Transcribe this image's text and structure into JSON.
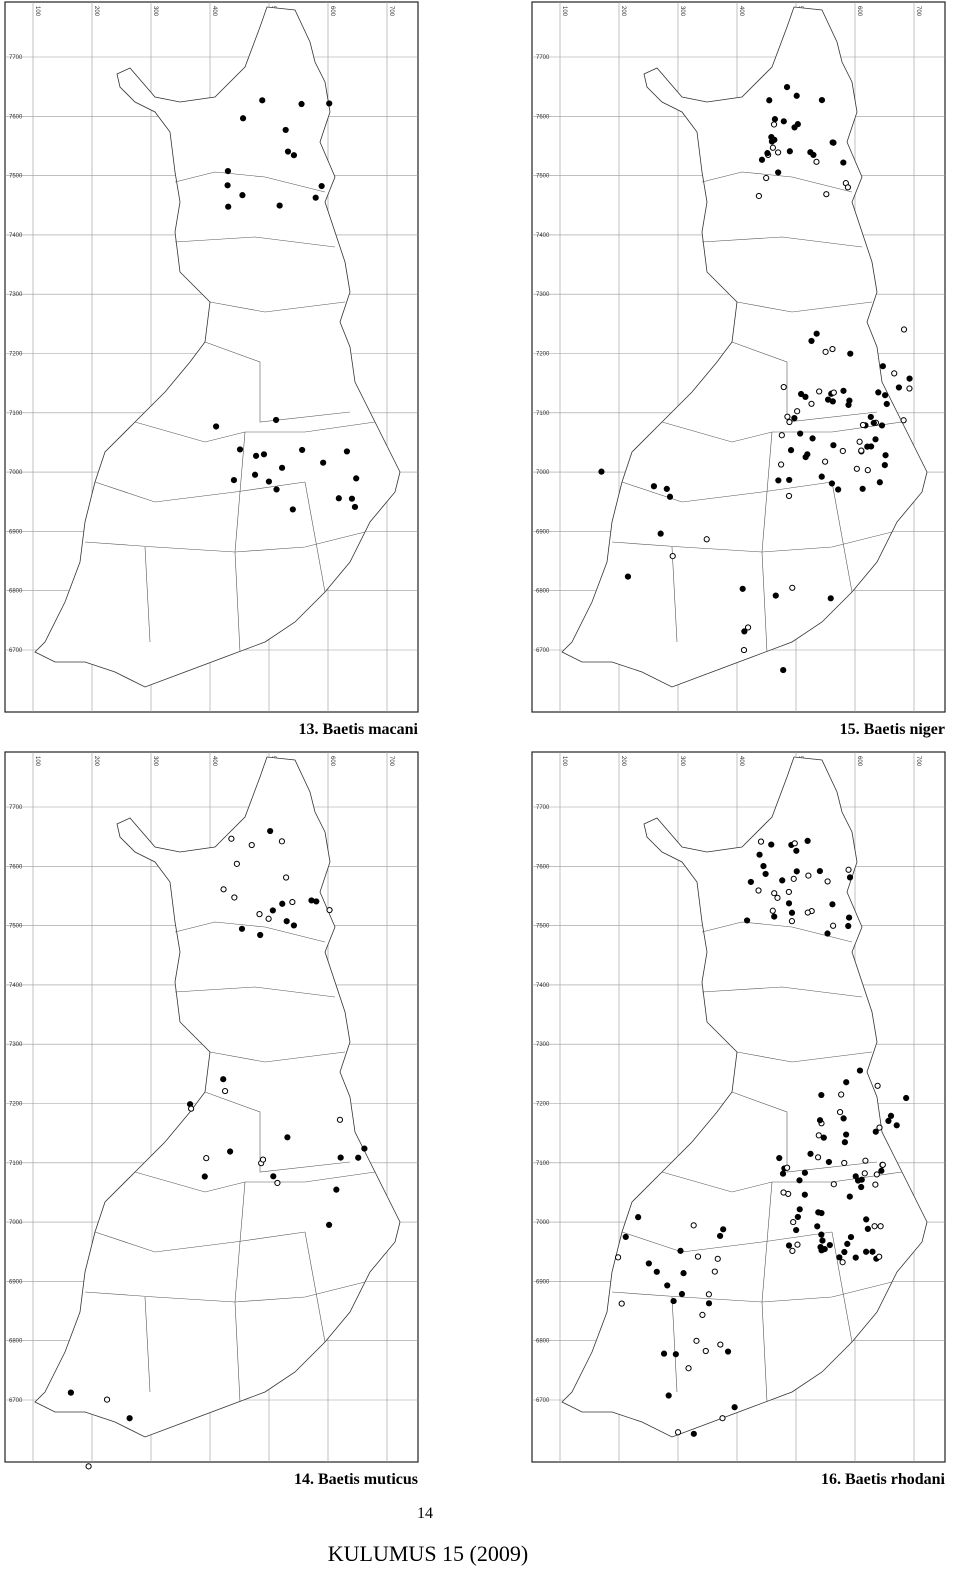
{
  "maps": [
    {
      "caption": "13. Baetis macani",
      "x_ticks": [
        "100",
        "200",
        "300",
        "400",
        "500",
        "600",
        "700"
      ],
      "y_ticks": [
        "7700",
        "7600",
        "7500",
        "7400",
        "7300",
        "7200",
        "7100",
        "7000",
        "6900",
        "6800",
        "6700"
      ]
    },
    {
      "caption": "15. Baetis niger",
      "x_ticks": [
        "100",
        "200",
        "300",
        "400",
        "500",
        "600",
        "700"
      ],
      "y_ticks": [
        "7700",
        "7600",
        "7500",
        "7400",
        "7300",
        "7200",
        "7100",
        "7000",
        "6900",
        "6800",
        "6700"
      ]
    },
    {
      "caption": "14. Baetis muticus",
      "x_ticks": [
        "100",
        "200",
        "300",
        "400",
        "500",
        "600",
        "700"
      ],
      "y_ticks": [
        "7700",
        "7600",
        "7500",
        "7400",
        "7300",
        "7200",
        "7100",
        "7000",
        "6900",
        "6800",
        "6700"
      ]
    },
    {
      "caption": "16. Baetis rhodani",
      "x_ticks": [
        "100",
        "200",
        "300",
        "400",
        "500",
        "600",
        "700"
      ],
      "y_ticks": [
        "7700",
        "7600",
        "7500",
        "7400",
        "7300",
        "7200",
        "7100",
        "7000",
        "6900",
        "6800",
        "6700"
      ]
    }
  ],
  "page_number": "14",
  "footer": "KULUMUS 15 (2009)"
}
